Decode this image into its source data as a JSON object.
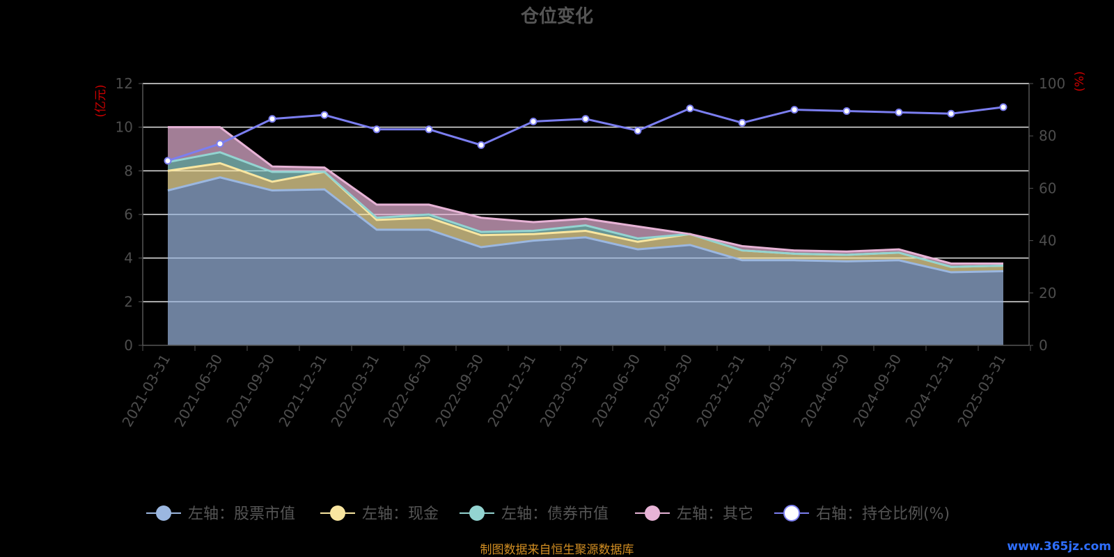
{
  "chart_data": {
    "type": "area",
    "title": "仓位变化",
    "left_axis": {
      "unit": "(亿元)",
      "ylim": [
        0,
        12
      ],
      "ticks": [
        0,
        2,
        4,
        6,
        8,
        10,
        12
      ]
    },
    "right_axis": {
      "unit": "(%)",
      "ylim": [
        0,
        100
      ],
      "ticks": [
        0,
        20,
        40,
        60,
        80,
        100
      ]
    },
    "categories": [
      "2021-03-31",
      "2021-06-30",
      "2021-09-30",
      "2021-12-31",
      "2022-03-31",
      "2022-06-30",
      "2022-09-30",
      "2022-12-31",
      "2023-03-31",
      "2023-06-30",
      "2023-09-30",
      "2023-12-31",
      "2024-03-31",
      "2024-06-30",
      "2024-09-30",
      "2024-12-31",
      "2025-03-31"
    ],
    "series": [
      {
        "name": "左轴：股票市值",
        "axis": "left",
        "kind": "stacked-area",
        "color": "#9bb7e0",
        "values": [
          7.1,
          7.7,
          7.1,
          7.15,
          5.3,
          5.3,
          4.5,
          4.8,
          4.95,
          4.4,
          4.6,
          3.9,
          3.9,
          3.85,
          3.9,
          3.35,
          3.4
        ]
      },
      {
        "name": "左轴：现金",
        "axis": "left",
        "kind": "stacked-area",
        "color": "#f9e6a0",
        "values": [
          0.9,
          0.65,
          0.4,
          0.8,
          0.45,
          0.55,
          0.55,
          0.3,
          0.3,
          0.35,
          0.5,
          0.45,
          0.3,
          0.3,
          0.35,
          0.25,
          0.25
        ]
      },
      {
        "name": "左轴：债券市值",
        "axis": "left",
        "kind": "stacked-area",
        "color": "#93d4d1",
        "values": [
          0.4,
          0.5,
          0.45,
          0.0,
          0.1,
          0.15,
          0.15,
          0.15,
          0.25,
          0.15,
          0.0,
          0.0,
          0.0,
          0.0,
          0.0,
          0.0,
          0.0
        ]
      },
      {
        "name": "左轴：其它",
        "axis": "left",
        "kind": "stacked-area",
        "color": "#e7b3d6",
        "values": [
          1.6,
          1.15,
          0.25,
          0.2,
          0.6,
          0.45,
          0.65,
          0.4,
          0.3,
          0.55,
          0.0,
          0.2,
          0.15,
          0.15,
          0.15,
          0.15,
          0.1
        ]
      },
      {
        "name": "右轴：持仓比例(%)",
        "axis": "right",
        "kind": "line",
        "color": "#7b7ef0",
        "values": [
          70.5,
          77.0,
          86.5,
          88.0,
          82.5,
          82.5,
          76.5,
          85.5,
          86.5,
          82.0,
          90.5,
          85.0,
          90.0,
          89.5,
          89.0,
          88.5,
          91.0
        ]
      }
    ],
    "grid": true,
    "legend_position": "bottom"
  },
  "footer": {
    "source": "制图数据来自恒生聚源数据库",
    "watermark": "www.365jz.com"
  }
}
